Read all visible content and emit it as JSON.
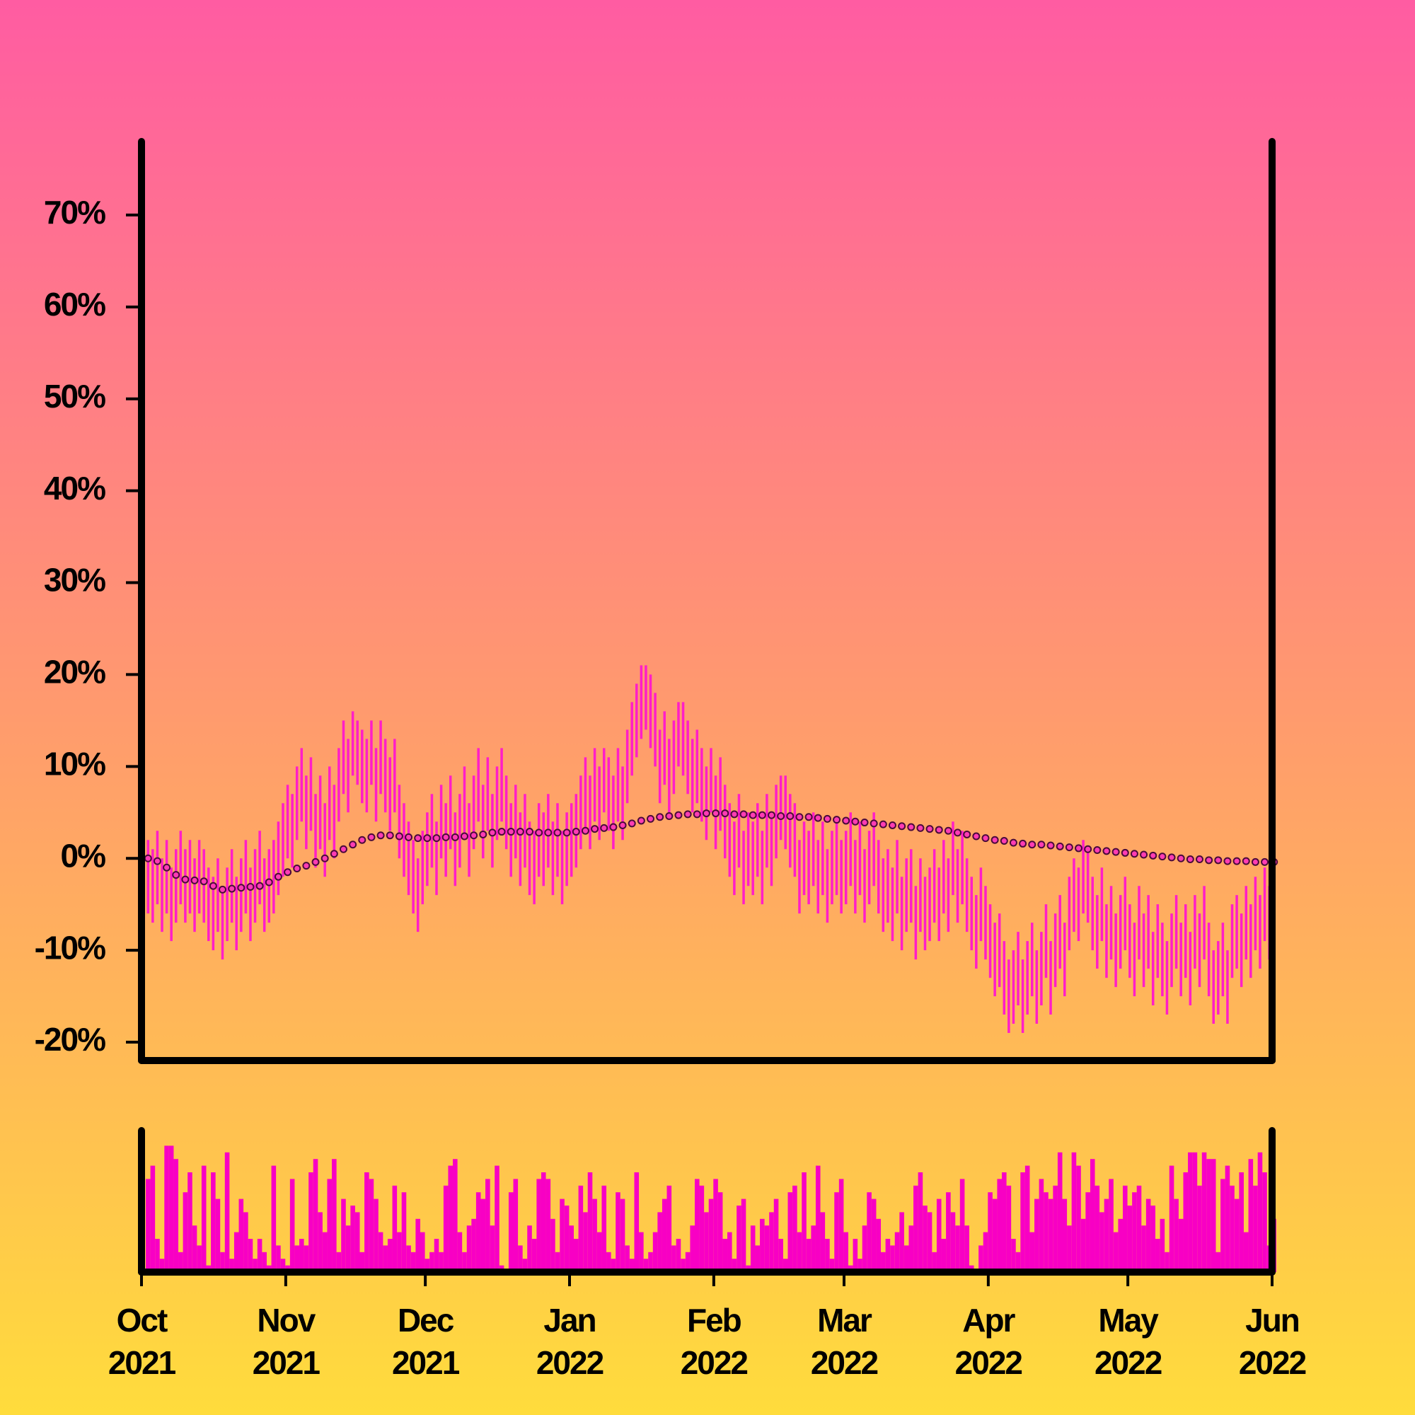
{
  "chart_data": {
    "type": "range-bar",
    "xlim": [
      0,
      243
    ],
    "xticks": [
      {
        "value": 0,
        "label": "Oct\n2021"
      },
      {
        "value": 31,
        "label": "Nov\n2021"
      },
      {
        "value": 61,
        "label": "Dec\n2021"
      },
      {
        "value": 92,
        "label": "Jan\n2022"
      },
      {
        "value": 123,
        "label": "Feb\n2022"
      },
      {
        "value": 151,
        "label": "Mar\n2022"
      },
      {
        "value": 182,
        "label": "Apr\n2022"
      },
      {
        "value": 212,
        "label": "May\n2022"
      },
      {
        "value": 243,
        "label": "Jun\n2022"
      }
    ],
    "ylim": [
      -22,
      78
    ],
    "yticks": [
      {
        "value": -20,
        "label": "-20%"
      },
      {
        "value": -10,
        "label": "-10%"
      },
      {
        "value": 0,
        "label": "0%"
      },
      {
        "value": 10,
        "label": "10%"
      },
      {
        "value": 20,
        "label": "20%"
      },
      {
        "value": 30,
        "label": "30%"
      },
      {
        "value": 40,
        "label": "40%"
      },
      {
        "value": 50,
        "label": "50%"
      },
      {
        "value": 60,
        "label": "60%"
      },
      {
        "value": 70,
        "label": "70%"
      }
    ],
    "color": "#ff1ec8",
    "ma_color": "#ff3cb4",
    "volume_color": "#f800c4",
    "low": [
      -6,
      -7,
      -5,
      -8,
      -6,
      -9,
      -7,
      -5,
      -7,
      -6,
      -8,
      -6,
      -7,
      -9,
      -10,
      -8,
      -11,
      -9,
      -7,
      -10,
      -8,
      -6,
      -9,
      -7,
      -5,
      -8,
      -7,
      -6,
      -4,
      -2,
      0,
      -1,
      2,
      4,
      1,
      3,
      -1,
      1,
      -2,
      2,
      0,
      4,
      7,
      5,
      9,
      8,
      6,
      5,
      8,
      4,
      7,
      5,
      3,
      5,
      0,
      -2,
      -4,
      -6,
      -8,
      -5,
      -3,
      -1,
      -4,
      0,
      -2,
      1,
      -3,
      -1,
      2,
      -2,
      1,
      4,
      0,
      3,
      -1,
      2,
      4,
      1,
      -2,
      0,
      -3,
      -1,
      -4,
      -5,
      -2,
      -3,
      -1,
      -4,
      -2,
      -5,
      -3,
      -2,
      -1,
      1,
      3,
      1,
      4,
      2,
      5,
      3,
      1,
      4,
      2,
      6,
      9,
      11,
      13,
      14,
      12,
      10,
      6,
      8,
      5,
      7,
      10,
      9,
      7,
      5,
      6,
      4,
      2,
      5,
      1,
      3,
      0,
      -2,
      -4,
      -1,
      -5,
      -3,
      -4,
      -2,
      -5,
      -1,
      -3,
      0,
      2,
      1,
      -1,
      -2,
      -6,
      -4,
      -5,
      -3,
      -6,
      -4,
      -7,
      -5,
      -4,
      -6,
      -5,
      -3,
      -6,
      -4,
      -7,
      -5,
      -3,
      -6,
      -8,
      -7,
      -9,
      -6,
      -10,
      -8,
      -7,
      -11,
      -8,
      -10,
      -9,
      -7,
      -9,
      -6,
      -8,
      -4,
      -7,
      -5,
      -8,
      -10,
      -12,
      -9,
      -11,
      -13,
      -15,
      -14,
      -17,
      -19,
      -18,
      -16,
      -19,
      -17,
      -15,
      -18,
      -16,
      -13,
      -17,
      -14,
      -12,
      -15,
      -10,
      -8,
      -9,
      -6,
      -7,
      -10,
      -12,
      -9,
      -13,
      -11,
      -14,
      -12,
      -10,
      -13,
      -15,
      -11,
      -14,
      -12,
      -16,
      -13,
      -15,
      -17,
      -14,
      -12,
      -15,
      -13,
      -16,
      -12,
      -14,
      -11,
      -15,
      -18,
      -17,
      -15,
      -18,
      -13,
      -12,
      -14,
      -11,
      -13,
      -10,
      -12,
      -9,
      -11,
      -8
    ],
    "high": [
      2,
      1,
      3,
      0,
      2,
      -1,
      1,
      3,
      1,
      2,
      0,
      2,
      1,
      -1,
      -2,
      0,
      -3,
      -1,
      1,
      -2,
      0,
      2,
      -1,
      1,
      3,
      0,
      1,
      2,
      4,
      6,
      8,
      7,
      10,
      12,
      9,
      11,
      7,
      9,
      6,
      10,
      8,
      12,
      15,
      13,
      16,
      15,
      14,
      13,
      15,
      12,
      15,
      13,
      11,
      13,
      8,
      6,
      4,
      2,
      0,
      3,
      5,
      7,
      4,
      8,
      6,
      9,
      5,
      7,
      10,
      6,
      9,
      12,
      8,
      11,
      7,
      10,
      12,
      9,
      6,
      8,
      5,
      7,
      4,
      3,
      6,
      5,
      7,
      4,
      6,
      3,
      5,
      6,
      7,
      9,
      11,
      9,
      12,
      10,
      12,
      11,
      9,
      12,
      10,
      14,
      17,
      19,
      21,
      21,
      20,
      18,
      14,
      16,
      13,
      15,
      17,
      17,
      15,
      13,
      14,
      12,
      10,
      12,
      9,
      11,
      8,
      6,
      4,
      7,
      3,
      5,
      4,
      6,
      3,
      7,
      5,
      8,
      9,
      9,
      7,
      6,
      2,
      4,
      3,
      5,
      2,
      4,
      1,
      3,
      4,
      2,
      3,
      5,
      2,
      4,
      1,
      3,
      5,
      2,
      0,
      1,
      -1,
      2,
      -2,
      0,
      1,
      -3,
      0,
      -2,
      -1,
      1,
      -1,
      2,
      0,
      4,
      1,
      3,
      0,
      -2,
      -4,
      -1,
      -3,
      -5,
      -7,
      -6,
      -9,
      -11,
      -10,
      -8,
      -11,
      -9,
      -7,
      -10,
      -8,
      -5,
      -9,
      -6,
      -4,
      -7,
      -2,
      0,
      -1,
      2,
      1,
      -2,
      -4,
      -1,
      -5,
      -3,
      -6,
      -4,
      -2,
      -5,
      -7,
      -3,
      -6,
      -4,
      -8,
      -5,
      -7,
      -9,
      -6,
      -4,
      -7,
      -5,
      -8,
      -4,
      -6,
      -3,
      -7,
      -10,
      -9,
      -7,
      -10,
      -5,
      -4,
      -6,
      -3,
      -5,
      -2,
      -4,
      -1,
      -3,
      0
    ],
    "ma": [
      0,
      null,
      -0.3,
      null,
      -1,
      null,
      -1.8,
      null,
      -2.3,
      null,
      -2.4,
      null,
      -2.5,
      null,
      -3,
      null,
      -3.4,
      null,
      -3.3,
      null,
      -3.2,
      null,
      -3.1,
      null,
      -3,
      null,
      -2.6,
      null,
      -2,
      null,
      -1.5,
      null,
      -1.1,
      null,
      -0.8,
      null,
      -0.4,
      null,
      0,
      null,
      0.5,
      null,
      1,
      null,
      1.5,
      null,
      2,
      null,
      2.3,
      null,
      2.5,
      null,
      2.5,
      null,
      2.4,
      null,
      2.3,
      null,
      2.2,
      null,
      2.2,
      null,
      2.2,
      null,
      2.3,
      null,
      2.3,
      null,
      2.4,
      null,
      2.5,
      null,
      2.6,
      null,
      2.8,
      null,
      2.9,
      null,
      2.9,
      null,
      2.9,
      null,
      2.9,
      null,
      2.8,
      null,
      2.8,
      null,
      2.8,
      null,
      2.8,
      null,
      2.9,
      null,
      3,
      null,
      3.2,
      null,
      3.3,
      null,
      3.4,
      null,
      3.6,
      null,
      3.8,
      null,
      4.1,
      null,
      4.3,
      null,
      4.5,
      null,
      4.6,
      null,
      4.7,
      null,
      4.8,
      null,
      4.8,
      null,
      4.9,
      null,
      4.9,
      null,
      4.9,
      null,
      4.8,
      null,
      4.8,
      null,
      4.7,
      null,
      4.7,
      null,
      4.7,
      null,
      4.6,
      null,
      4.6,
      null,
      4.5,
      null,
      4.5,
      null,
      4.4,
      null,
      4.3,
      null,
      4.2,
      null,
      4.1,
      null,
      4,
      null,
      3.9,
      null,
      3.8,
      null,
      3.7,
      null,
      3.6,
      null,
      3.5,
      null,
      3.4,
      null,
      3.3,
      null,
      3.2,
      null,
      3.1,
      null,
      3,
      null,
      2.8,
      null,
      2.6,
      null,
      2.4,
      null,
      2.2,
      null,
      2,
      null,
      1.9,
      null,
      1.7,
      null,
      1.6,
      null,
      1.5,
      null,
      1.5,
      null,
      1.4,
      null,
      1.3,
      null,
      1.2,
      null,
      1.1,
      null,
      1,
      null,
      0.9,
      null,
      0.8,
      null,
      0.7,
      null,
      0.6,
      null,
      0.5,
      null,
      0.4,
      null,
      0.3,
      null,
      0.2,
      null,
      0.1,
      null,
      0,
      null,
      -0.1,
      null,
      -0.1,
      null,
      -0.2,
      null,
      -0.2,
      null,
      -0.3,
      null,
      -0.3,
      null,
      -0.3,
      null,
      -0.4,
      null,
      -0.4,
      null,
      -0.4
    ],
    "volume_lim": [
      0,
      100
    ],
    "volume": [
      70,
      80,
      25,
      10,
      95,
      95,
      85,
      15,
      60,
      75,
      35,
      20,
      80,
      5,
      75,
      55,
      15,
      90,
      10,
      30,
      55,
      45,
      25,
      10,
      25,
      15,
      5,
      80,
      20,
      10,
      5,
      70,
      20,
      25,
      20,
      75,
      85,
      45,
      30,
      70,
      85,
      15,
      55,
      35,
      50,
      45,
      15,
      75,
      70,
      55,
      30,
      20,
      25,
      65,
      30,
      60,
      20,
      15,
      40,
      30,
      10,
      15,
      25,
      15,
      65,
      80,
      85,
      30,
      15,
      35,
      40,
      60,
      55,
      70,
      35,
      80,
      5,
      0,
      60,
      70,
      20,
      10,
      35,
      25,
      70,
      75,
      70,
      40,
      15,
      55,
      50,
      35,
      25,
      65,
      45,
      75,
      55,
      30,
      65,
      15,
      10,
      60,
      55,
      20,
      10,
      75,
      30,
      10,
      15,
      30,
      45,
      55,
      65,
      20,
      25,
      10,
      15,
      35,
      70,
      65,
      45,
      55,
      70,
      60,
      25,
      30,
      10,
      50,
      55,
      5,
      35,
      20,
      40,
      35,
      45,
      55,
      25,
      10,
      60,
      65,
      30,
      75,
      25,
      35,
      80,
      45,
      25,
      10,
      60,
      70,
      30,
      5,
      25,
      10,
      35,
      60,
      55,
      40,
      15,
      25,
      20,
      30,
      45,
      20,
      35,
      65,
      75,
      50,
      45,
      15,
      55,
      25,
      60,
      45,
      35,
      70,
      35,
      5,
      0,
      20,
      30,
      60,
      55,
      70,
      75,
      65,
      25,
      15,
      75,
      80,
      30,
      55,
      70,
      60,
      55,
      65,
      90,
      55,
      35,
      90,
      80,
      40,
      60,
      85,
      65,
      45,
      55,
      70,
      30,
      40,
      65,
      50,
      60,
      65,
      35,
      55,
      50,
      25,
      40,
      15,
      80,
      55,
      40,
      75,
      90,
      90,
      65,
      90,
      85,
      85,
      15,
      70,
      80,
      65,
      55,
      75,
      30,
      85,
      65,
      90,
      75,
      20,
      40
    ]
  }
}
